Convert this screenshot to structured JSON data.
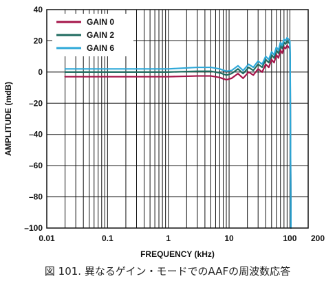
{
  "caption": "図 101. 異なるゲイン・モードでのAAFの周波数応答",
  "chart_data": {
    "type": "line",
    "xlabel": "FREQUENCY (kHz)",
    "ylabel": "AMPLITUDE (mdB)",
    "xscale": "log",
    "xlim": [
      0.01,
      200
    ],
    "ylim": [
      -100,
      40
    ],
    "xticks": [
      "0.01",
      "0.1",
      "1",
      "10",
      "100",
      "200"
    ],
    "yticks": [
      "40",
      "20",
      "0",
      "–20",
      "–40",
      "–60",
      "–80",
      "–100"
    ],
    "grid": true,
    "legend_position": "top-left",
    "series": [
      {
        "name": "GAIN 0",
        "color": "#a5154a",
        "x": [
          0.02,
          0.1,
          1,
          3,
          5,
          7,
          9,
          11,
          14,
          17,
          21,
          25,
          30,
          35,
          40,
          45,
          50,
          55,
          60,
          65,
          70,
          75,
          80,
          85,
          90,
          95,
          100,
          101,
          102,
          104
        ],
        "y": [
          -3,
          -3,
          -3,
          -2.5,
          -2.5,
          -3.5,
          -5,
          -4,
          -1,
          -4,
          0,
          -2,
          2,
          0,
          5,
          3,
          8,
          6,
          11,
          9,
          14,
          12,
          16,
          15,
          17,
          16,
          15,
          5,
          -40,
          -100
        ]
      },
      {
        "name": "GAIN 2",
        "color": "#1f6b5f",
        "x": [
          0.02,
          0.1,
          1,
          3,
          5,
          7,
          9,
          11,
          14,
          17,
          21,
          25,
          30,
          35,
          40,
          45,
          50,
          55,
          60,
          65,
          70,
          75,
          80,
          85,
          90,
          95,
          100,
          101,
          102,
          104
        ],
        "y": [
          0,
          0,
          0,
          0.5,
          0.5,
          -0.5,
          -2,
          -1,
          2,
          -1,
          3,
          1,
          5,
          3,
          8,
          6,
          11,
          9,
          14,
          12,
          17,
          15,
          19,
          18,
          20,
          19,
          18,
          8,
          -35,
          -100
        ]
      },
      {
        "name": "GAIN 6",
        "color": "#2ea8d8",
        "x": [
          0.02,
          0.1,
          1,
          3,
          5,
          7,
          9,
          11,
          14,
          17,
          21,
          25,
          30,
          35,
          40,
          45,
          50,
          55,
          60,
          65,
          70,
          75,
          80,
          85,
          90,
          95,
          100,
          101,
          102,
          104
        ],
        "y": [
          2,
          2,
          2,
          3,
          3,
          2,
          0.5,
          1,
          4,
          1,
          5,
          3,
          7,
          5,
          10,
          8,
          13,
          11,
          16,
          14,
          19,
          17,
          21,
          20,
          22,
          21,
          20,
          10,
          -30,
          -100
        ]
      }
    ]
  }
}
